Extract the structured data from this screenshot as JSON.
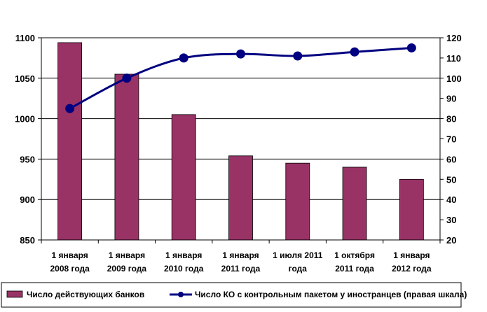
{
  "chart_data": {
    "type": "bar",
    "categories": [
      [
        "1 января",
        "2008 года"
      ],
      [
        "1 января",
        "2009 года"
      ],
      [
        "1 января",
        "2010 года"
      ],
      [
        "1 января",
        "2011 года"
      ],
      [
        "1 июля 2011",
        "года"
      ],
      [
        "1 октября",
        "2011 года"
      ],
      [
        "1 января",
        "2012 года"
      ]
    ],
    "series": [
      {
        "name": "Число действующих банков",
        "type": "bar",
        "axis": "left",
        "values": [
          1094,
          1055,
          1005,
          954,
          945,
          940,
          925
        ]
      },
      {
        "name": "Число КО с контрольным пакетом у иностранцев (правая шкала)",
        "type": "line",
        "axis": "right",
        "values": [
          85,
          100,
          110,
          112,
          111,
          113,
          115
        ]
      }
    ],
    "left_axis": {
      "min": 850,
      "max": 1100,
      "ticks": [
        850,
        900,
        950,
        1000,
        1050,
        1100
      ]
    },
    "right_axis": {
      "min": 20,
      "max": 120,
      "ticks": [
        20,
        30,
        40,
        50,
        60,
        70,
        80,
        90,
        100,
        110,
        120
      ]
    },
    "grid": "horizontal",
    "legend_position": "bottom",
    "colors": {
      "bar": "#993366",
      "line": "#000080",
      "grid": "#000000"
    }
  }
}
